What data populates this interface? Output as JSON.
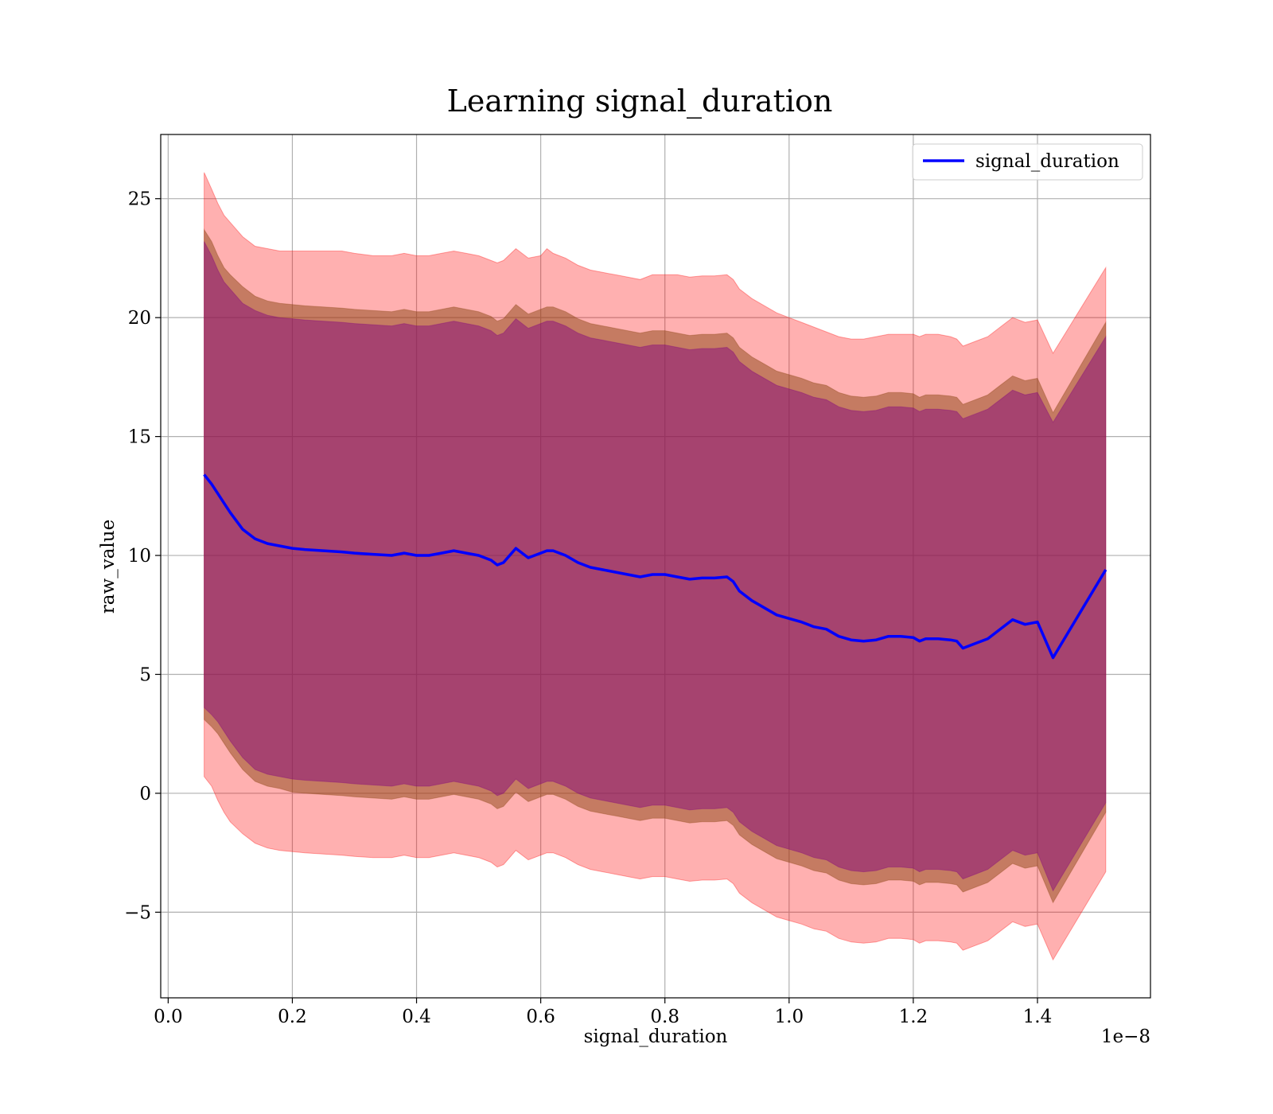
{
  "chart_data": {
    "type": "line",
    "title": "Learning signal_duration",
    "xlabel": "signal_duration",
    "ylabel": "raw_value",
    "x_offset_text": "1e−8",
    "xlim": [
      -0.012,
      1.582
    ],
    "ylim": [
      -8.6,
      27.7
    ],
    "x_ticks": [
      0.0,
      0.2,
      0.4,
      0.6,
      0.8,
      1.0,
      1.2,
      1.4
    ],
    "x_tick_labels": [
      "0.0",
      "0.2",
      "0.4",
      "0.6",
      "0.8",
      "1.0",
      "1.2",
      "1.4"
    ],
    "y_ticks": [
      -5,
      0,
      5,
      10,
      15,
      20,
      25
    ],
    "y_tick_labels": [
      "−5",
      "0",
      "5",
      "10",
      "15",
      "20",
      "25"
    ],
    "grid": true,
    "legend_position": "top-right",
    "colors": {
      "mean_line": "#0000ff",
      "band_outer": "#ff0000",
      "band_middle": "#8b4513",
      "band_inner": "#800080"
    },
    "x": [
      0.058,
      0.07,
      0.08,
      0.09,
      0.1,
      0.12,
      0.14,
      0.16,
      0.18,
      0.2,
      0.22,
      0.25,
      0.28,
      0.3,
      0.33,
      0.36,
      0.38,
      0.4,
      0.42,
      0.44,
      0.46,
      0.48,
      0.5,
      0.52,
      0.53,
      0.54,
      0.56,
      0.58,
      0.6,
      0.61,
      0.62,
      0.64,
      0.66,
      0.68,
      0.7,
      0.72,
      0.74,
      0.76,
      0.78,
      0.8,
      0.82,
      0.84,
      0.86,
      0.88,
      0.9,
      0.91,
      0.92,
      0.94,
      0.96,
      0.98,
      1.0,
      1.02,
      1.04,
      1.06,
      1.08,
      1.1,
      1.12,
      1.14,
      1.16,
      1.18,
      1.2,
      1.21,
      1.22,
      1.24,
      1.26,
      1.27,
      1.28,
      1.3,
      1.32,
      1.34,
      1.36,
      1.38,
      1.4,
      1.425,
      1.51
    ],
    "series": [
      {
        "name": "signal_duration",
        "values": [
          13.4,
          13.0,
          12.6,
          12.2,
          11.8,
          11.1,
          10.7,
          10.5,
          10.4,
          10.3,
          10.25,
          10.2,
          10.15,
          10.1,
          10.05,
          10.0,
          10.1,
          10.0,
          10.0,
          10.1,
          10.2,
          10.1,
          10.0,
          9.8,
          9.6,
          9.7,
          10.3,
          9.9,
          10.1,
          10.2,
          10.2,
          10.0,
          9.7,
          9.5,
          9.4,
          9.3,
          9.2,
          9.1,
          9.2,
          9.2,
          9.1,
          9.0,
          9.05,
          9.05,
          9.1,
          8.9,
          8.5,
          8.1,
          7.8,
          7.5,
          7.35,
          7.2,
          7.0,
          6.9,
          6.6,
          6.45,
          6.4,
          6.45,
          6.6,
          6.6,
          6.55,
          6.4,
          6.5,
          6.5,
          6.45,
          6.4,
          6.1,
          6.3,
          6.5,
          6.9,
          7.3,
          7.1,
          7.2,
          5.7,
          9.4
        ]
      }
    ],
    "bands": [
      {
        "level": "outer",
        "upper": [
          26.1,
          25.4,
          24.8,
          24.3,
          24.0,
          23.4,
          23.0,
          22.9,
          22.8,
          22.8,
          22.8,
          22.8,
          22.8,
          22.7,
          22.6,
          22.6,
          22.7,
          22.6,
          22.6,
          22.7,
          22.8,
          22.7,
          22.6,
          22.4,
          22.3,
          22.4,
          22.9,
          22.5,
          22.6,
          22.9,
          22.7,
          22.5,
          22.2,
          22.0,
          21.9,
          21.8,
          21.7,
          21.6,
          21.8,
          21.8,
          21.8,
          21.7,
          21.75,
          21.75,
          21.8,
          21.6,
          21.2,
          20.8,
          20.5,
          20.2,
          20.0,
          19.8,
          19.6,
          19.4,
          19.2,
          19.1,
          19.1,
          19.2,
          19.3,
          19.3,
          19.3,
          19.2,
          19.3,
          19.3,
          19.2,
          19.1,
          18.8,
          19.0,
          19.2,
          19.6,
          20.0,
          19.8,
          19.9,
          18.5,
          22.1
        ],
        "lower": [
          0.7,
          0.3,
          -0.3,
          -0.8,
          -1.2,
          -1.7,
          -2.1,
          -2.3,
          -2.4,
          -2.45,
          -2.5,
          -2.55,
          -2.6,
          -2.65,
          -2.7,
          -2.7,
          -2.6,
          -2.7,
          -2.7,
          -2.6,
          -2.5,
          -2.6,
          -2.7,
          -2.9,
          -3.1,
          -3.0,
          -2.4,
          -2.8,
          -2.6,
          -2.5,
          -2.5,
          -2.7,
          -3.0,
          -3.2,
          -3.3,
          -3.4,
          -3.5,
          -3.6,
          -3.5,
          -3.5,
          -3.6,
          -3.7,
          -3.65,
          -3.65,
          -3.6,
          -3.8,
          -4.2,
          -4.6,
          -4.9,
          -5.2,
          -5.35,
          -5.5,
          -5.7,
          -5.8,
          -6.1,
          -6.25,
          -6.3,
          -6.25,
          -6.1,
          -6.1,
          -6.15,
          -6.3,
          -6.2,
          -6.2,
          -6.25,
          -6.3,
          -6.6,
          -6.4,
          -6.2,
          -5.8,
          -5.4,
          -5.6,
          -5.5,
          -7.0,
          -3.3
        ]
      },
      {
        "level": "middle",
        "upper": [
          23.7,
          23.2,
          22.6,
          22.1,
          21.8,
          21.3,
          20.9,
          20.7,
          20.6,
          20.55,
          20.5,
          20.45,
          20.4,
          20.35,
          20.3,
          20.25,
          20.35,
          20.25,
          20.25,
          20.35,
          20.45,
          20.35,
          20.25,
          20.05,
          19.85,
          19.95,
          20.55,
          20.15,
          20.35,
          20.45,
          20.45,
          20.25,
          19.95,
          19.75,
          19.65,
          19.55,
          19.45,
          19.35,
          19.45,
          19.45,
          19.35,
          19.25,
          19.3,
          19.3,
          19.35,
          19.15,
          18.75,
          18.35,
          18.05,
          17.75,
          17.6,
          17.45,
          17.25,
          17.15,
          16.85,
          16.7,
          16.65,
          16.7,
          16.85,
          16.85,
          16.8,
          16.65,
          16.75,
          16.75,
          16.7,
          16.65,
          16.35,
          16.55,
          16.75,
          17.15,
          17.55,
          17.35,
          17.45,
          16.0,
          19.8
        ],
        "lower": [
          3.1,
          2.8,
          2.5,
          2.1,
          1.7,
          1.0,
          0.5,
          0.3,
          0.2,
          0.05,
          0.0,
          -0.05,
          -0.1,
          -0.15,
          -0.2,
          -0.25,
          -0.15,
          -0.25,
          -0.25,
          -0.15,
          -0.05,
          -0.15,
          -0.25,
          -0.45,
          -0.65,
          -0.55,
          0.05,
          -0.35,
          -0.15,
          -0.05,
          -0.05,
          -0.25,
          -0.55,
          -0.75,
          -0.85,
          -0.95,
          -1.05,
          -1.15,
          -1.05,
          -1.05,
          -1.15,
          -1.25,
          -1.2,
          -1.2,
          -1.15,
          -1.35,
          -1.75,
          -2.15,
          -2.45,
          -2.75,
          -2.9,
          -3.05,
          -3.25,
          -3.35,
          -3.65,
          -3.8,
          -3.85,
          -3.8,
          -3.65,
          -3.65,
          -3.7,
          -3.85,
          -3.75,
          -3.75,
          -3.8,
          -3.85,
          -4.15,
          -3.95,
          -3.75,
          -3.35,
          -2.95,
          -3.15,
          -3.05,
          -4.6,
          -0.8
        ]
      },
      {
        "level": "inner",
        "upper": [
          23.2,
          22.6,
          22.0,
          21.5,
          21.2,
          20.6,
          20.3,
          20.1,
          20.0,
          19.95,
          19.9,
          19.85,
          19.8,
          19.75,
          19.7,
          19.65,
          19.75,
          19.65,
          19.65,
          19.75,
          19.85,
          19.75,
          19.65,
          19.45,
          19.25,
          19.35,
          19.95,
          19.55,
          19.75,
          19.85,
          19.85,
          19.65,
          19.35,
          19.15,
          19.05,
          18.95,
          18.85,
          18.75,
          18.85,
          18.85,
          18.75,
          18.65,
          18.7,
          18.7,
          18.75,
          18.55,
          18.15,
          17.75,
          17.45,
          17.15,
          17.0,
          16.85,
          16.65,
          16.55,
          16.25,
          16.1,
          16.05,
          16.1,
          16.25,
          16.25,
          16.2,
          16.05,
          16.15,
          16.15,
          16.1,
          16.05,
          15.75,
          15.95,
          16.15,
          16.55,
          16.95,
          16.75,
          16.85,
          15.6,
          19.2
        ],
        "lower": [
          3.6,
          3.3,
          3.0,
          2.6,
          2.2,
          1.5,
          1.0,
          0.8,
          0.7,
          0.6,
          0.55,
          0.5,
          0.45,
          0.4,
          0.35,
          0.3,
          0.4,
          0.3,
          0.3,
          0.4,
          0.5,
          0.4,
          0.3,
          0.1,
          -0.1,
          0.0,
          0.6,
          0.2,
          0.4,
          0.5,
          0.5,
          0.3,
          0.0,
          -0.2,
          -0.3,
          -0.4,
          -0.5,
          -0.6,
          -0.5,
          -0.5,
          -0.6,
          -0.7,
          -0.65,
          -0.65,
          -0.6,
          -0.8,
          -1.2,
          -1.6,
          -1.9,
          -2.2,
          -2.35,
          -2.5,
          -2.7,
          -2.8,
          -3.1,
          -3.25,
          -3.3,
          -3.25,
          -3.1,
          -3.1,
          -3.15,
          -3.3,
          -3.2,
          -3.2,
          -3.25,
          -3.3,
          -3.6,
          -3.4,
          -3.2,
          -2.8,
          -2.4,
          -2.6,
          -2.5,
          -4.1,
          -0.4
        ]
      }
    ]
  }
}
